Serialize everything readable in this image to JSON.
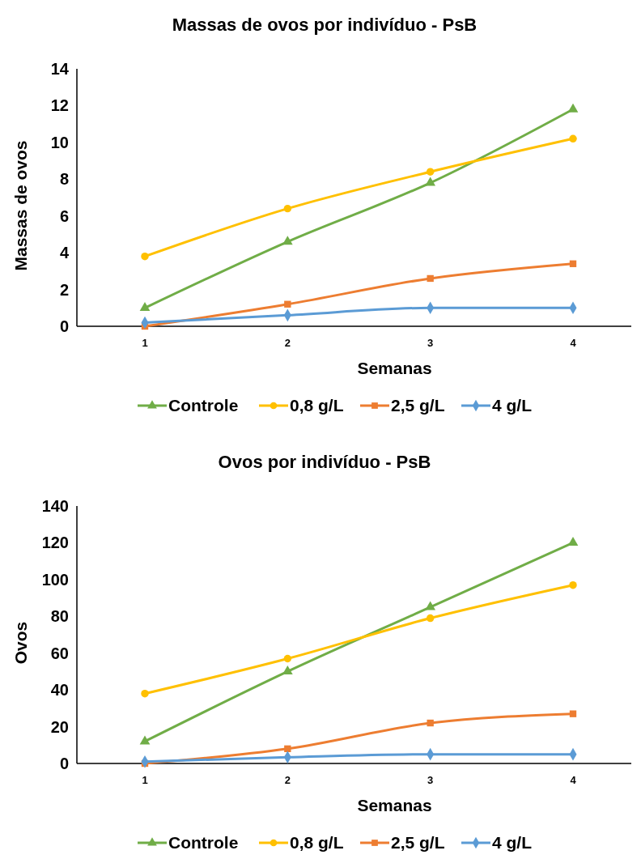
{
  "chart_data": [
    {
      "type": "line",
      "title": "Massas de ovos por indivíduo - PsB",
      "xlabel": "Semanas",
      "ylabel": "Massas de ovos",
      "categories": [
        "1",
        "2",
        "3",
        "4"
      ],
      "ylim": [
        0,
        14
      ],
      "yticks": [
        0,
        2,
        4,
        6,
        8,
        10,
        12,
        14
      ],
      "grid": false,
      "legend": "bottom",
      "series": [
        {
          "name": "Controle",
          "color": "#70ad47",
          "marker": "triangle",
          "values": [
            1.0,
            4.6,
            7.8,
            11.8
          ]
        },
        {
          "name": "0,8 g/L",
          "color": "#ffc000",
          "marker": "circle",
          "values": [
            3.8,
            6.4,
            8.4,
            10.2
          ]
        },
        {
          "name": "2,5 g/L",
          "color": "#ed7d31",
          "marker": "square",
          "values": [
            0,
            1.2,
            2.6,
            3.4
          ]
        },
        {
          "name": "4 g/L",
          "color": "#5b9bd5",
          "marker": "diamond",
          "values": [
            0.2,
            0.6,
            1.0,
            1.0
          ]
        }
      ]
    },
    {
      "type": "line",
      "title": "Ovos por indivíduo - PsB",
      "xlabel": "Semanas",
      "ylabel": "Ovos",
      "categories": [
        "1",
        "2",
        "3",
        "4"
      ],
      "ylim": [
        0,
        140
      ],
      "yticks": [
        0,
        20,
        40,
        60,
        80,
        100,
        120,
        140
      ],
      "grid": false,
      "legend": "bottom",
      "series": [
        {
          "name": "Controle",
          "color": "#70ad47",
          "marker": "triangle",
          "values": [
            12,
            50,
            85,
            120
          ]
        },
        {
          "name": "0,8 g/L",
          "color": "#ffc000",
          "marker": "circle",
          "values": [
            38,
            57,
            79,
            97
          ]
        },
        {
          "name": "2,5 g/L",
          "color": "#ed7d31",
          "marker": "square",
          "values": [
            0,
            8,
            22,
            27
          ]
        },
        {
          "name": "4 g/L",
          "color": "#5b9bd5",
          "marker": "diamond",
          "values": [
            1,
            3.4,
            5,
            5
          ]
        }
      ]
    }
  ]
}
